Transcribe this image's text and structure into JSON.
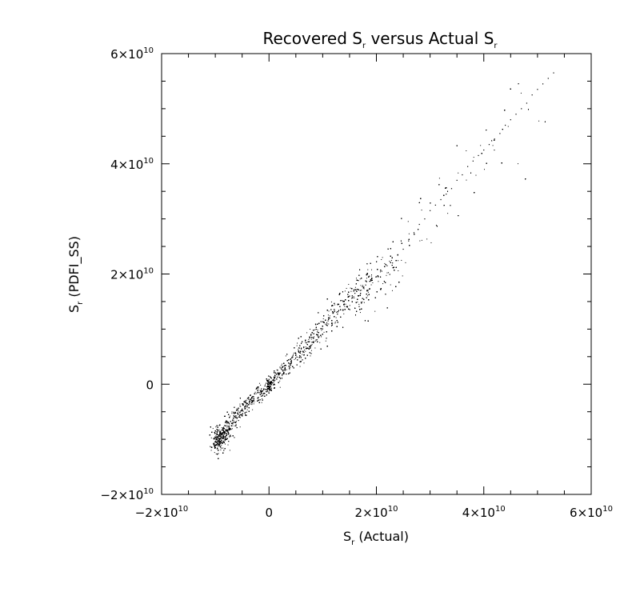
{
  "chart_data": {
    "type": "scatter",
    "title": {
      "pre": "Recovered S",
      "sub1": "r",
      "mid": " versus Actual S",
      "sub2": "r"
    },
    "xlabel": {
      "pre": "S",
      "sub": "r",
      "post": " (Actual)"
    },
    "ylabel": {
      "pre": "S",
      "sub": "r",
      "post": " (PDFI_SS)"
    },
    "xlim": [
      -20000000000.0,
      60000000000.0
    ],
    "ylim": [
      -20000000000.0,
      60000000000.0
    ],
    "x_ticks": [
      {
        "value": -20000000000.0,
        "mant": "−2×10",
        "exp": "10"
      },
      {
        "value": 0,
        "mant": "0",
        "exp": ""
      },
      {
        "value": 20000000000.0,
        "mant": "2×10",
        "exp": "10"
      },
      {
        "value": 40000000000.0,
        "mant": "4×10",
        "exp": "10"
      },
      {
        "value": 60000000000.0,
        "mant": "6×10",
        "exp": "10"
      }
    ],
    "y_ticks": [
      {
        "value": -20000000000.0,
        "mant": "−2×10",
        "exp": "10"
      },
      {
        "value": 0,
        "mant": "0",
        "exp": ""
      },
      {
        "value": 20000000000.0,
        "mant": "2×10",
        "exp": "10"
      },
      {
        "value": 40000000000.0,
        "mant": "4×10",
        "exp": "10"
      },
      {
        "value": 60000000000.0,
        "mant": "6×10",
        "exp": "10"
      }
    ],
    "grid": false,
    "points": [
      [
        -10000000000.0,
        -10500000000.0
      ],
      [
        -9000000000.0,
        -9500000000.0
      ],
      [
        -8000000000.0,
        -9000000000.0
      ],
      [
        -7500000000.0,
        -7000000000.0
      ],
      [
        -6000000000.0,
        -6000000000.0
      ],
      [
        -5000000000.0,
        -4500000000.0
      ],
      [
        -4000000000.0,
        -3500000000.0
      ],
      [
        -3000000000.0,
        -3000000000.0
      ],
      [
        -2000000000.0,
        -1500000000.0
      ],
      [
        -1000000000.0,
        -1000000000.0
      ],
      [
        0,
        -500000000.0
      ],
      [
        0,
        0
      ],
      [
        500000000.0,
        500000000.0
      ],
      [
        1000000000.0,
        1000000000.0
      ],
      [
        2000000000.0,
        2000000000.0
      ],
      [
        3000000000.0,
        3000000000.0
      ],
      [
        4000000000.0,
        4500000000.0
      ],
      [
        5000000000.0,
        5500000000.0
      ],
      [
        6000000000.0,
        6500000000.0
      ],
      [
        7000000000.0,
        7500000000.0
      ],
      [
        8000000000.0,
        8500000000.0
      ],
      [
        9000000000.0,
        9500000000.0
      ],
      [
        10000000000.0,
        10500000000.0
      ],
      [
        11000000000.0,
        11500000000.0
      ],
      [
        12000000000.0,
        13000000000.0
      ],
      [
        13000000000.0,
        14500000000.0
      ],
      [
        14000000000.0,
        15000000000.0
      ],
      [
        15000000000.0,
        16000000000.0
      ],
      [
        16000000000.0,
        16500000000.0
      ],
      [
        17000000000.0,
        17000000000.0
      ],
      [
        18000000000.0,
        18000000000.0
      ],
      [
        19000000000.0,
        19000000000.0
      ],
      [
        20000000000.0,
        19500000000.0
      ],
      [
        21000000000.0,
        20500000000.0
      ],
      [
        22000000000.0,
        21500000000.0
      ],
      [
        23000000000.0,
        22000000000.0
      ],
      [
        24000000000.0,
        23500000000.0
      ],
      [
        25000000000.0,
        24500000000.0
      ],
      [
        26000000000.0,
        26000000000.0
      ],
      [
        27000000000.0,
        27500000000.0
      ],
      [
        28000000000.0,
        29000000000.0
      ],
      [
        29000000000.0,
        30000000000.0
      ],
      [
        30000000000.0,
        31500000000.0
      ],
      [
        31000000000.0,
        32500000000.0
      ],
      [
        32000000000.0,
        33500000000.0
      ],
      [
        33000000000.0,
        34500000000.0
      ],
      [
        34000000000.0,
        35500000000.0
      ],
      [
        35000000000.0,
        37000000000.0
      ],
      [
        36000000000.0,
        38000000000.0
      ],
      [
        37000000000.0,
        39500000000.0
      ],
      [
        38000000000.0,
        40500000000.0
      ],
      [
        39000000000.0,
        41500000000.0
      ],
      [
        40000000000.0,
        42500000000.0
      ],
      [
        41000000000.0,
        43500000000.0
      ],
      [
        42000000000.0,
        44500000000.0
      ],
      [
        43000000000.0,
        45500000000.0
      ],
      [
        44000000000.0,
        47000000000.0
      ],
      [
        45000000000.0,
        48000000000.0
      ],
      [
        46000000000.0,
        49000000000.0
      ],
      [
        47000000000.0,
        50000000000.0
      ],
      [
        48000000000.0,
        51000000000.0
      ],
      [
        49000000000.0,
        52500000000.0
      ],
      [
        50000000000.0,
        53500000000.0
      ],
      [
        51000000000.0,
        54500000000.0
      ],
      [
        52000000000.0,
        55500000000.0
      ],
      [
        53000000000.0,
        56500000000.0
      ]
    ]
  }
}
